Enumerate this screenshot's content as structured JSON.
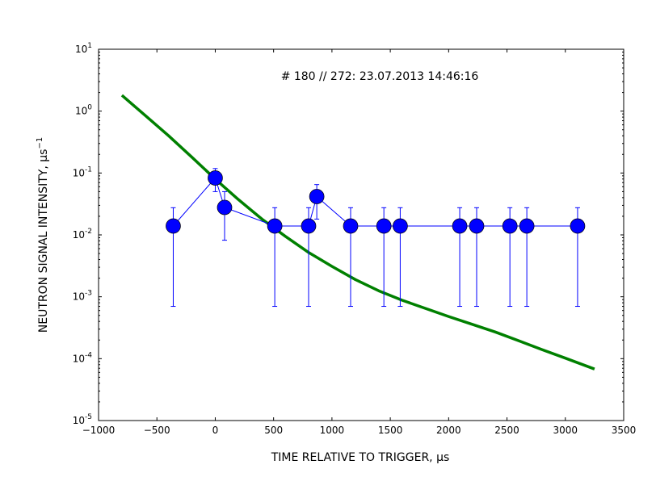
{
  "chart_data": {
    "type": "scatter",
    "annotation": "# 180 // 272: 23.07.2013 14:46:16",
    "xlabel": "TIME RELATIVE TO TRIGGER, μs",
    "ylabel": "NEUTRON SIGNAL INTENSITY, μs",
    "ylabel_superscript": "−1",
    "xlim": [
      -1000,
      3500
    ],
    "ylim": [
      1e-05,
      10
    ],
    "yscale": "log",
    "grid": false,
    "x_ticks": [
      {
        "value": -1000,
        "label": "−1000"
      },
      {
        "value": -500,
        "label": "−500"
      },
      {
        "value": 0,
        "label": "0"
      },
      {
        "value": 500,
        "label": "500"
      },
      {
        "value": 1000,
        "label": "1000"
      },
      {
        "value": 1500,
        "label": "1500"
      },
      {
        "value": 2000,
        "label": "2000"
      },
      {
        "value": 2500,
        "label": "2500"
      },
      {
        "value": 3000,
        "label": "3000"
      },
      {
        "value": 3500,
        "label": "3500"
      }
    ],
    "y_ticks": [
      {
        "value": 1e-05,
        "base": "10",
        "exp": "-5"
      },
      {
        "value": 0.0001,
        "base": "10",
        "exp": "-4"
      },
      {
        "value": 0.001,
        "base": "10",
        "exp": "-3"
      },
      {
        "value": 0.01,
        "base": "10",
        "exp": "-2"
      },
      {
        "value": 0.1,
        "base": "10",
        "exp": "-1"
      },
      {
        "value": 1,
        "base": "10",
        "exp": "0"
      },
      {
        "value": 10,
        "base": "10",
        "exp": "1"
      }
    ],
    "series": [
      {
        "kind": "points_with_errorbars",
        "color": "#0000ff",
        "points": [
          {
            "x": -360,
            "y": 0.0139,
            "lo": 0.0007,
            "hi": 0.0275
          },
          {
            "x": 0,
            "y": 0.083,
            "lo": 0.05,
            "hi": 0.118
          },
          {
            "x": 80,
            "y": 0.0278,
            "lo": 0.0082,
            "hi": 0.05
          },
          {
            "x": 510,
            "y": 0.0139,
            "lo": 0.0007,
            "hi": 0.0275
          },
          {
            "x": 800,
            "y": 0.0139,
            "lo": 0.0007,
            "hi": 0.0275
          },
          {
            "x": 870,
            "y": 0.0417,
            "lo": 0.018,
            "hi": 0.065
          },
          {
            "x": 1160,
            "y": 0.0139,
            "lo": 0.0007,
            "hi": 0.0275
          },
          {
            "x": 1445,
            "y": 0.0139,
            "lo": 0.0007,
            "hi": 0.0275
          },
          {
            "x": 1585,
            "y": 0.0139,
            "lo": 0.0007,
            "hi": 0.0275
          },
          {
            "x": 2095,
            "y": 0.0139,
            "lo": 0.0007,
            "hi": 0.0275
          },
          {
            "x": 2240,
            "y": 0.0139,
            "lo": 0.0007,
            "hi": 0.0275
          },
          {
            "x": 2525,
            "y": 0.0139,
            "lo": 0.0007,
            "hi": 0.0275
          },
          {
            "x": 2670,
            "y": 0.0139,
            "lo": 0.0007,
            "hi": 0.0275
          },
          {
            "x": 3105,
            "y": 0.0139,
            "lo": 0.0007,
            "hi": 0.0275
          }
        ]
      },
      {
        "kind": "line",
        "color": "#008000",
        "x": [
          -800,
          -600,
          -400,
          -200,
          0,
          200,
          400,
          600,
          800,
          1000,
          1200,
          1400,
          1600,
          1800,
          2000,
          2200,
          2400,
          2600,
          2800,
          3000,
          3250
        ],
        "y": [
          1.8,
          0.85,
          0.4,
          0.18,
          0.08,
          0.037,
          0.018,
          0.0095,
          0.0052,
          0.0031,
          0.0019,
          0.00125,
          0.00088,
          0.00065,
          0.00048,
          0.00036,
          0.00027,
          0.000195,
          0.00014,
          0.000102,
          6.8e-05
        ]
      }
    ]
  }
}
